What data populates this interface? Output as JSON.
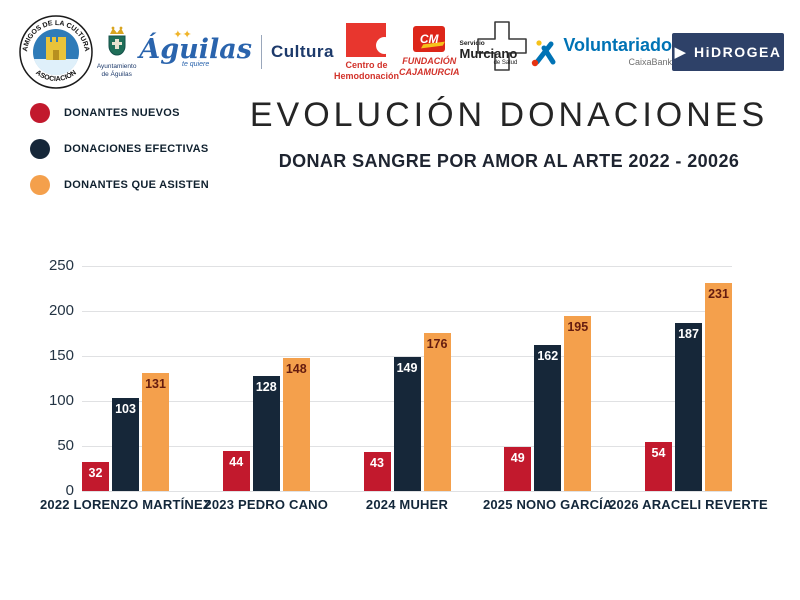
{
  "header": {
    "title": "EVOLUCIÓN DONACIONES",
    "subtitle": "DONAR SANGRE POR AMOR AL ARTE 2022 - 20026"
  },
  "logos": {
    "amigos": {
      "text_top": "AMIGOS DE LA CULTURA",
      "text_bottom": "ASOCIACIÓN"
    },
    "ayuntamiento": {
      "line1": "Ayuntamiento",
      "line2": "de Águilas"
    },
    "aguilas_cultura": {
      "script": "Águilas",
      "script_sub": "te quiere",
      "label": "Cultura"
    },
    "hemodonacion": {
      "line1": "Centro de",
      "line2": "Hemodonación"
    },
    "cajamurcia": {
      "mark": "CM",
      "line1": "FUNDACIÓN",
      "line2": "CAJAMURCIA"
    },
    "murciano": {
      "line1": "Servicio",
      "line2": "Murciano",
      "line3": "de Salud"
    },
    "caixabank": {
      "label": "Voluntariado",
      "sub": "CaixaBank"
    },
    "hidrogea": {
      "label": "HiDROGEA"
    }
  },
  "legend": {
    "items": [
      {
        "label": "DONANTES NUEVOS",
        "color": "#c2192d"
      },
      {
        "label": "DONACIONES EFECTIVAS",
        "color": "#162739"
      },
      {
        "label": "DONANTES QUE ASISTEN",
        "color": "#f4a04c"
      }
    ]
  },
  "chart_data": {
    "type": "bar",
    "title": "EVOLUCIÓN DONACIONES",
    "subtitle": "DONAR SANGRE POR AMOR AL ARTE 2022 - 20026",
    "categories": [
      "2022 LORENZO MARTÍNEZ",
      "2023 PEDRO CANO",
      "2024 MUHER",
      "2025 NONO GARCÍA",
      "2026 ARACELI REVERTE"
    ],
    "series": [
      {
        "name": "DONANTES NUEVOS",
        "color": "#c2192d",
        "label_color": "#ffffff",
        "values": [
          32,
          44,
          43,
          49,
          54
        ]
      },
      {
        "name": "DONACIONES EFECTIVAS",
        "color": "#162739",
        "label_color": "#ffffff",
        "values": [
          103,
          128,
          149,
          162,
          187
        ]
      },
      {
        "name": "DONANTES QUE ASISTEN",
        "color": "#f4a04c",
        "label_color": "#651c0f",
        "values": [
          131,
          148,
          176,
          195,
          231
        ]
      }
    ],
    "xlabel": "",
    "ylabel": "",
    "ylim": [
      0,
      250
    ],
    "yticks": [
      0,
      50,
      100,
      150,
      200,
      250
    ],
    "grid": true,
    "legend_position": "upper-left"
  }
}
